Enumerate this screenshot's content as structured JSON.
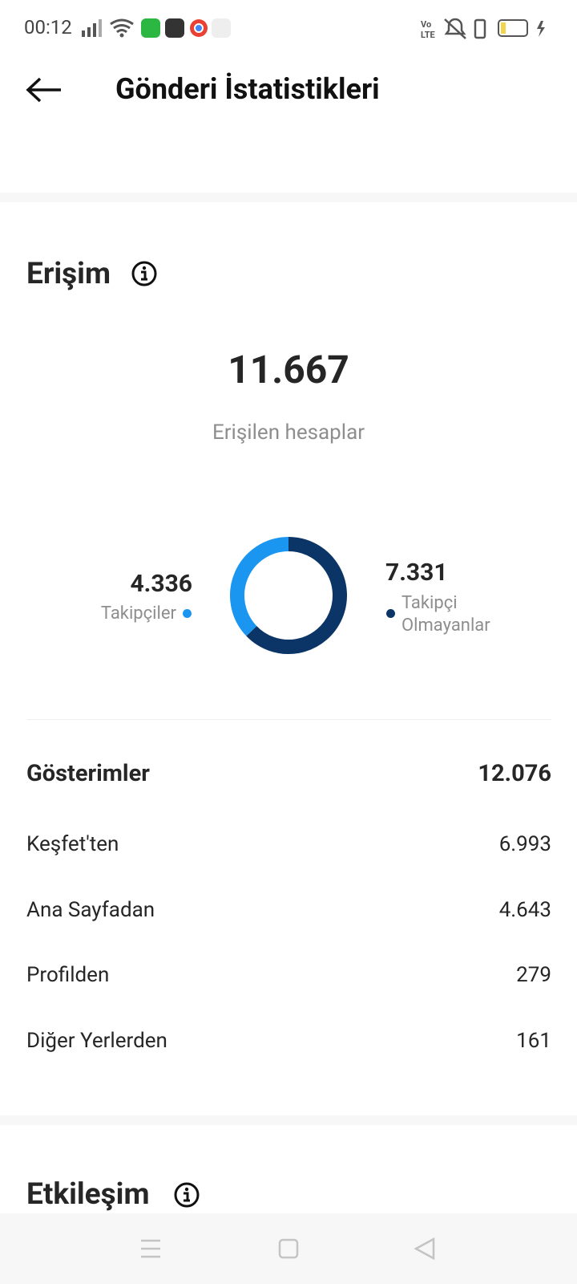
{
  "status_bar": {
    "time": "00:12",
    "battery": "28"
  },
  "header": {
    "title": "Gönderi İstatistikleri"
  },
  "reach": {
    "title": "Erişim",
    "total": "11.667",
    "total_label": "Erişilen hesaplar",
    "segments": [
      {
        "name": "Takipçiler",
        "value": 4336,
        "value_label": "4.336",
        "color": "#1a96f0"
      },
      {
        "name": "Takipçi Olmayanlar",
        "value": 7331,
        "value_label": "7.331",
        "color": "#0b3566"
      }
    ]
  },
  "impressions": {
    "title": "Gösterimler",
    "total": "12.076",
    "rows": [
      [
        "Keşfet'ten",
        "6.993"
      ],
      [
        "Ana Sayfadan",
        "4.643"
      ],
      [
        "Profilden",
        "279"
      ],
      [
        "Diğer Yerlerden",
        "161"
      ]
    ]
  },
  "engagement": {
    "title": "Etkileşim"
  }
}
